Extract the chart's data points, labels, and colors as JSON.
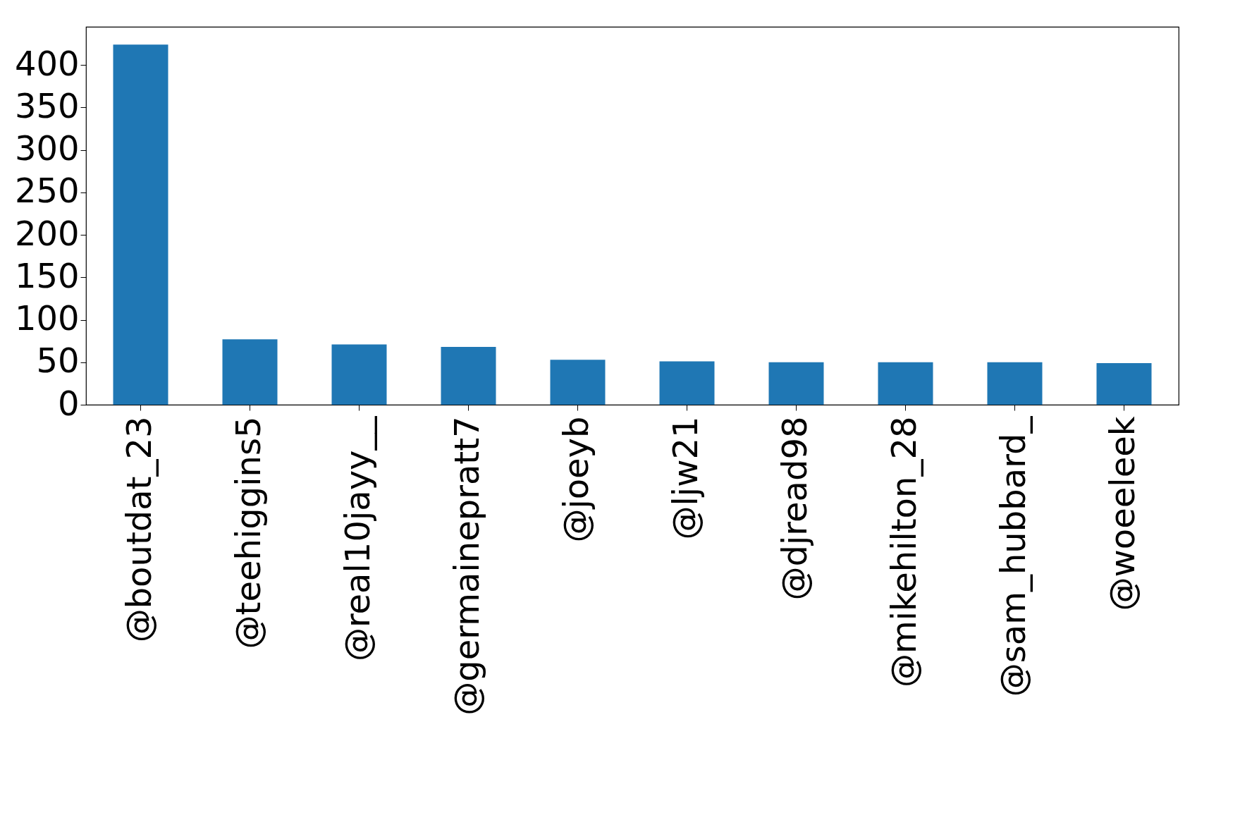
{
  "chart_data": {
    "type": "bar",
    "categories": [
      "@boutdat_23",
      "@teehiggins5",
      "@real10jayy__",
      "@germainepratt7",
      "@joeyb",
      "@ljw21",
      "@djread98",
      "@mikehilton_28",
      "@sam_hubbard_",
      "@woeeleek"
    ],
    "values": [
      424,
      77,
      71,
      68,
      53,
      51,
      50,
      50,
      50,
      49
    ],
    "color": "#1f77b4",
    "ylim": [
      0,
      445
    ],
    "yticks": [
      0,
      50,
      100,
      150,
      200,
      250,
      300,
      350,
      400
    ],
    "grid": false
  }
}
